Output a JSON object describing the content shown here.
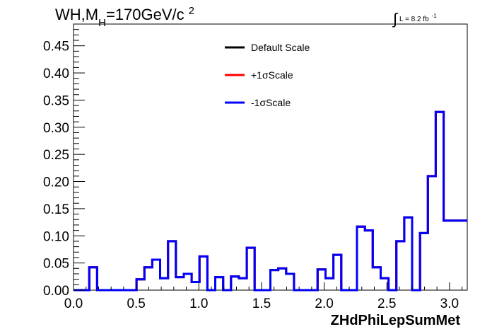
{
  "chart_data": {
    "type": "histogram",
    "title": {
      "main": "WH,M",
      "subscript": "H",
      "tail": "=170GeV/c",
      "superscript": "2"
    },
    "luminosity": {
      "integral": "∫",
      "text": "L = 8.2 fb",
      "superscript": "-1"
    },
    "xlabel": "ZHdPhiLepSumMet",
    "ylabel": "",
    "xlim": [
      0,
      3.1416
    ],
    "ylim": [
      0,
      0.49
    ],
    "xticks": [
      "0.0",
      "0.5",
      "1.0",
      "1.5",
      "2.0",
      "2.5",
      "3.0"
    ],
    "yticks": [
      "0.00",
      "0.05",
      "0.10",
      "0.15",
      "0.20",
      "0.25",
      "0.30",
      "0.35",
      "0.40",
      "0.45"
    ],
    "grid": false,
    "legend_position": "top-center",
    "bin_edges": [
      0,
      0.0628,
      0.1257,
      0.1885,
      0.2513,
      0.3142,
      0.377,
      0.4398,
      0.5027,
      0.5655,
      0.6283,
      0.6912,
      0.754,
      0.8168,
      0.8796,
      0.9425,
      1.0053,
      1.0681,
      1.131,
      1.1938,
      1.2566,
      1.3195,
      1.3823,
      1.4451,
      1.508,
      1.5708,
      1.6336,
      1.6965,
      1.7593,
      1.8221,
      1.885,
      1.9478,
      2.0106,
      2.0735,
      2.1363,
      2.1991,
      2.2619,
      2.3248,
      2.3876,
      2.4504,
      2.5133,
      2.5761,
      2.6389,
      2.7018,
      2.7646,
      2.8274,
      2.8903,
      2.9531,
      3.0159,
      3.0788,
      3.1416
    ],
    "series": [
      {
        "name": "Default Scale",
        "color": "#000000",
        "values": [
          0.0,
          0.0,
          0.042,
          0.0,
          0.0,
          0.0,
          0.0,
          0.0,
          0.02,
          0.042,
          0.056,
          0.022,
          0.09,
          0.024,
          0.03,
          0.015,
          0.062,
          0.0,
          0.024,
          0.0,
          0.025,
          0.022,
          0.078,
          0.0,
          0.0,
          0.037,
          0.04,
          0.03,
          0.0,
          0.0,
          0.0,
          0.038,
          0.022,
          0.065,
          0.0,
          0.0,
          0.117,
          0.11,
          0.042,
          0.022,
          0.0,
          0.09,
          0.134,
          0.0,
          0.105,
          0.21,
          0.328,
          0.128,
          0.128,
          0.128
        ]
      },
      {
        "name": "+1σScale",
        "color": "#ff0000",
        "values": [
          0.0,
          0.0,
          0.042,
          0.0,
          0.0,
          0.0,
          0.0,
          0.0,
          0.02,
          0.042,
          0.056,
          0.022,
          0.09,
          0.024,
          0.03,
          0.015,
          0.062,
          0.0,
          0.024,
          0.0,
          0.025,
          0.022,
          0.078,
          0.0,
          0.0,
          0.037,
          0.04,
          0.03,
          0.0,
          0.0,
          0.0,
          0.038,
          0.022,
          0.065,
          0.0,
          0.0,
          0.117,
          0.11,
          0.042,
          0.022,
          0.0,
          0.09,
          0.134,
          0.0,
          0.105,
          0.21,
          0.328,
          0.128,
          0.128,
          0.128
        ]
      },
      {
        "name": "-1σScale",
        "color": "#0000ff",
        "values": [
          0.0,
          0.0,
          0.042,
          0.0,
          0.0,
          0.0,
          0.0,
          0.0,
          0.02,
          0.042,
          0.056,
          0.022,
          0.09,
          0.024,
          0.03,
          0.015,
          0.062,
          0.0,
          0.024,
          0.0,
          0.025,
          0.022,
          0.078,
          0.0,
          0.0,
          0.037,
          0.04,
          0.03,
          0.0,
          0.0,
          0.0,
          0.038,
          0.022,
          0.065,
          0.0,
          0.0,
          0.117,
          0.11,
          0.042,
          0.022,
          0.0,
          0.09,
          0.134,
          0.0,
          0.105,
          0.21,
          0.328,
          0.128,
          0.128,
          0.128
        ]
      }
    ]
  }
}
